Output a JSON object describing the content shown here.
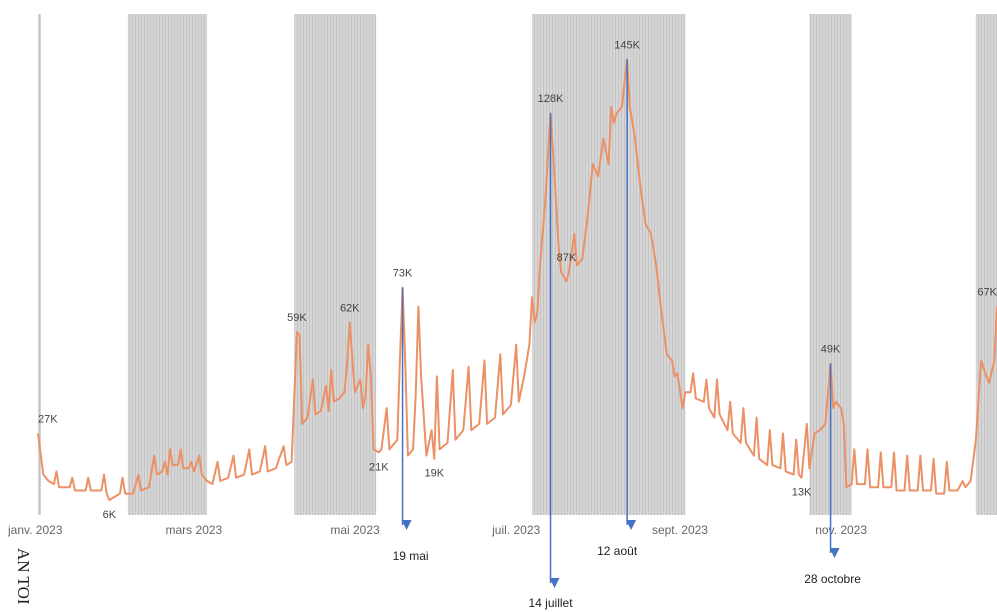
{
  "chart_data": {
    "type": "line",
    "x": [
      0,
      2,
      4,
      6,
      7,
      8,
      12,
      13,
      14,
      18,
      19,
      20,
      24,
      25,
      26,
      27,
      31,
      32,
      33,
      36,
      38,
      39,
      42,
      44,
      45,
      47,
      48,
      49,
      50,
      51,
      53,
      54,
      55,
      57,
      58,
      59,
      61,
      62,
      64,
      66,
      68,
      69,
      72,
      74,
      75,
      78,
      80,
      81,
      84,
      86,
      87,
      90,
      93,
      94,
      96,
      98,
      99,
      100,
      102,
      104,
      105,
      107,
      109,
      110,
      111,
      112,
      114,
      116,
      117,
      118,
      119,
      120,
      122,
      123,
      124,
      125,
      126,
      127,
      129,
      130,
      132,
      133,
      136,
      137,
      138,
      139,
      140,
      142,
      143,
      144,
      145,
      147,
      149,
      150,
      151,
      152,
      155,
      157,
      158,
      161,
      163,
      164,
      167,
      169,
      170,
      173,
      175,
      176,
      179,
      181,
      182,
      184,
      186,
      187,
      188,
      189,
      190,
      192,
      194,
      195,
      197,
      198,
      200,
      201,
      203,
      204,
      206,
      208,
      210,
      212,
      214,
      216,
      217,
      218,
      219,
      221,
      223,
      224,
      226,
      228,
      230,
      232,
      234,
      236,
      238,
      240,
      241,
      242,
      244,
      245,
      247,
      248,
      249,
      252,
      253,
      254,
      256,
      257,
      258,
      261,
      262,
      263,
      266,
      267,
      268,
      271,
      272,
      273,
      276,
      277,
      278,
      281,
      282,
      283,
      286,
      287,
      288,
      289,
      291,
      292,
      294,
      296,
      298,
      300,
      301,
      302,
      304,
      305,
      306,
      308,
      309,
      310,
      313,
      314,
      315,
      318,
      319,
      320,
      323,
      324,
      325,
      328,
      329,
      330,
      333,
      334,
      335,
      338,
      339,
      340,
      343,
      344,
      345,
      348,
      350,
      351,
      353,
      355,
      357,
      359,
      360,
      362,
      363
    ],
    "series": [
      {
        "color": "#ec9166",
        "values": [
          27,
          14,
          12,
          11,
          15,
          10,
          10,
          13,
          9,
          9,
          13,
          9,
          9,
          14,
          8,
          6,
          8,
          13,
          8,
          8,
          14,
          9,
          10,
          20,
          14,
          15,
          18,
          14,
          22,
          17,
          17,
          22,
          16,
          16,
          18,
          15,
          20,
          14,
          12,
          11,
          18,
          12,
          13,
          20,
          13,
          14,
          22,
          14,
          15,
          23,
          15,
          16,
          23,
          17,
          18,
          59,
          58,
          30,
          32,
          44,
          33,
          34,
          42,
          34,
          47,
          37,
          38,
          40,
          49,
          62,
          50,
          40,
          44,
          35,
          39,
          55,
          45,
          22,
          21,
          22,
          35,
          22,
          25,
          50,
          73,
          50,
          20,
          22,
          40,
          67,
          45,
          20,
          28,
          19,
          45,
          22,
          24,
          47,
          25,
          28,
          48,
          28,
          30,
          50,
          30,
          32,
          52,
          33,
          36,
          55,
          37,
          45,
          55,
          70,
          62,
          65,
          80,
          100,
          128,
          115,
          87,
          78,
          75,
          78,
          90,
          80,
          82,
          95,
          112,
          108,
          120,
          112,
          130,
          125,
          128,
          130,
          145,
          130,
          120,
          105,
          93,
          90,
          80,
          65,
          52,
          50,
          45,
          46,
          35,
          40,
          40,
          46,
          38,
          37,
          44,
          35,
          32,
          44,
          33,
          28,
          37,
          27,
          24,
          35,
          24,
          20,
          32,
          19,
          17,
          28,
          17,
          16,
          27,
          15,
          14,
          25,
          14,
          13,
          30,
          16,
          27,
          28,
          30,
          49,
          35,
          37,
          35,
          30,
          10,
          11,
          22,
          11,
          11,
          22,
          10,
          10,
          21,
          10,
          10,
          21,
          9,
          9,
          20,
          9,
          9,
          20,
          9,
          9,
          19,
          8,
          8,
          18,
          9,
          9,
          12,
          10,
          12,
          25,
          50,
          45,
          43,
          50,
          67
        ],
        "value_labels": [
          "27K",
          null,
          null,
          null,
          null,
          null,
          null,
          null,
          null,
          null,
          null,
          null,
          null,
          null,
          null,
          "6K",
          null,
          null,
          null,
          null,
          null,
          null,
          null,
          null,
          null,
          null,
          null,
          null,
          null,
          null,
          null,
          null,
          null,
          null,
          null,
          null,
          null,
          null,
          null,
          null,
          null,
          null,
          null,
          null,
          null,
          null,
          null,
          null,
          null,
          null,
          null,
          null,
          null,
          null,
          null,
          "59K",
          null,
          null,
          null,
          null,
          null,
          null,
          null,
          null,
          null,
          null,
          null,
          null,
          null,
          "62K",
          null,
          null,
          null,
          null,
          null,
          null,
          null,
          null,
          "21K",
          null,
          null,
          null,
          null,
          null,
          "73K",
          null,
          null,
          null,
          null,
          null,
          null,
          null,
          null,
          "19K",
          null,
          null,
          null,
          null,
          null,
          null,
          null,
          null,
          null,
          null,
          null,
          null,
          null,
          null,
          null,
          null,
          null,
          null,
          null,
          null,
          null,
          null,
          null,
          null,
          "128K",
          null,
          "87K",
          null,
          null,
          null,
          null,
          null,
          null,
          null,
          null,
          null,
          null,
          null,
          null,
          null,
          null,
          null,
          "145K",
          null,
          null,
          null,
          null,
          null,
          null,
          null,
          null,
          null,
          null,
          null,
          null,
          null,
          null,
          null,
          null,
          null,
          null,
          null,
          null,
          null,
          null,
          null,
          null,
          null,
          null,
          null,
          null,
          null,
          null,
          null,
          null,
          null,
          null,
          null,
          null,
          null,
          null,
          null,
          null,
          "13K",
          null,
          null,
          null,
          null,
          null,
          "49K",
          null,
          null,
          null,
          null,
          null,
          null,
          null,
          null,
          null,
          null,
          null,
          null,
          null,
          null,
          null,
          null,
          null,
          null,
          null,
          null,
          null,
          null,
          null,
          null,
          null,
          null,
          null,
          null,
          null,
          null,
          null,
          null,
          null,
          null,
          null,
          null,
          null,
          null,
          "67K"
        ]
      }
    ],
    "xlim": [
      0,
      363
    ],
    "ylim": [
      0,
      150
    ],
    "xticks": [
      {
        "value": 0,
        "label": "janv. 2023"
      },
      {
        "value": 59,
        "label": "mars 2023"
      },
      {
        "value": 120,
        "label": "mai 2023"
      },
      {
        "value": 181,
        "label": "juil. 2023"
      },
      {
        "value": 243,
        "label": "sept. 2023"
      },
      {
        "value": 304,
        "label": "nov. 2023"
      }
    ],
    "shaded_ranges": [
      [
        0,
        1
      ],
      [
        34,
        64
      ],
      [
        97,
        128
      ],
      [
        187,
        245
      ],
      [
        292,
        308
      ],
      [
        355,
        363
      ]
    ],
    "annotations": [
      {
        "label": "19 mai",
        "x": 138
      },
      {
        "label": "14 juillet",
        "x": 194
      },
      {
        "label": "12 août",
        "x": 223
      },
      {
        "label": "28 octobre",
        "x": 300
      }
    ],
    "clipped_text": "AN TOI"
  }
}
